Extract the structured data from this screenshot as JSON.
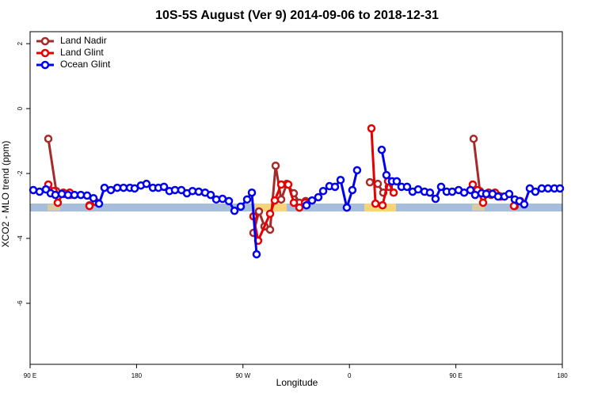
{
  "chart_data": {
    "type": "line",
    "title": "10S-5S August (Ver 9)   2014-09-06 to 2018-12-31",
    "x_label": "Longitude",
    "y_label": "XCO2 - MLO trend (ppm)",
    "xlim": [
      90,
      540
    ],
    "ylim": [
      -7.88,
      2.37
    ],
    "xticks": [
      {
        "value": 90,
        "label": "90 E"
      },
      {
        "value": 180,
        "label": "180"
      },
      {
        "value": 270,
        "label": "90 W"
      },
      {
        "value": 360,
        "label": "0"
      },
      {
        "value": 450,
        "label": "90 E"
      },
      {
        "value": 540,
        "label": "180"
      }
    ],
    "yticks": [
      -6,
      -4,
      -2,
      0,
      2
    ],
    "legend": "top-left",
    "series": [
      {
        "name": "Land Nadir",
        "color": "#a52a2a",
        "x": [
          105.4,
          112.1,
          118.1,
          124.1,
          null,
          140.2,
          null,
          278.8,
          283.5,
          288.2,
          292.9,
          297.6,
          302.3,
          307,
          313,
          317.7,
          323,
          null,
          377.3,
          384,
          388.6,
          393.3,
          null,
          465,
          470.3,
          475,
          479.7,
          485.7,
          null,
          499.8
        ],
        "values": [
          -0.93,
          -2.54,
          -2.63,
          -2.66,
          null,
          -2.98,
          null,
          -3.83,
          -3.17,
          -3.63,
          -3.73,
          -1.76,
          -2.8,
          -2.32,
          -2.61,
          -2.9,
          -2.85,
          null,
          -2.27,
          -2.32,
          -2.59,
          -2.41,
          null,
          -0.93,
          -2.54,
          -2.63,
          -2.66,
          -2.68,
          null,
          -3.0
        ]
      },
      {
        "name": "Land Glint",
        "color": "#e60000",
        "x": [
          105.4,
          109.9,
          113.4,
          118.1,
          123.5,
          null,
          140.2,
          145.6,
          null,
          278.8,
          282.8,
          292.9,
          296.9,
          302.3,
          308.3,
          313,
          317.7,
          322.4,
          null,
          378.6,
          382,
          388,
          392.7,
          397.4,
          null,
          464.3,
          468.3,
          473,
          477.7,
          483.1,
          487.8,
          null,
          499.1,
          504.5
        ],
        "values": [
          -2.34,
          -2.54,
          -2.9,
          -2.59,
          -2.59,
          null,
          -3.0,
          -2.88,
          null,
          -3.32,
          -4.07,
          -3.24,
          -2.83,
          -2.34,
          -2.34,
          -2.9,
          -3.05,
          -2.9,
          null,
          -0.61,
          -2.93,
          -2.98,
          -2.24,
          -2.59,
          null,
          -2.34,
          -2.51,
          -2.9,
          -2.59,
          -2.59,
          -2.71,
          null,
          -3.0,
          -2.85
        ]
      },
      {
        "name": "Ocean Glint",
        "color": "#0000ee",
        "x": [
          92.7,
          98,
          103.4,
          107.4,
          111.4,
          116.8,
          122.1,
          127.5,
          132.9,
          138.2,
          143.6,
          148.3,
          152.9,
          158.3,
          163.7,
          169,
          174.4,
          178.4,
          183.7,
          188.4,
          193.8,
          198.5,
          203.2,
          207.8,
          212.5,
          217.9,
          222.6,
          227.3,
          232.6,
          238,
          242.7,
          247.4,
          252.7,
          258.1,
          262.8,
          268.1,
          273.5,
          277.5,
          281.5,
          null,
          323.7,
          328.4,
          333.7,
          337.8,
          343.1,
          347.8,
          352.5,
          357.8,
          362.5,
          366.5,
          null,
          387.3,
          391.3,
          396,
          400,
          404,
          408.7,
          413.4,
          418.1,
          423.5,
          428.1,
          432.8,
          437.5,
          442.2,
          446.9,
          452.3,
          457,
          462.3,
          466.3,
          471.7,
          475.7,
          481,
          485.7,
          491.1,
          495.1,
          499.8,
          503.8,
          507.8,
          512.5,
          517.2,
          522.6,
          527.9,
          533.3,
          538
        ],
        "values": [
          -2.51,
          -2.56,
          -2.49,
          -2.61,
          -2.66,
          -2.63,
          -2.66,
          -2.66,
          -2.66,
          -2.68,
          -2.76,
          -2.93,
          -2.44,
          -2.51,
          -2.44,
          -2.44,
          -2.44,
          -2.46,
          -2.37,
          -2.32,
          -2.44,
          -2.44,
          -2.41,
          -2.54,
          -2.51,
          -2.51,
          -2.61,
          -2.54,
          -2.56,
          -2.59,
          -2.66,
          -2.8,
          -2.78,
          -2.85,
          -3.15,
          -3.02,
          -2.8,
          -2.59,
          -4.49,
          null,
          -2.98,
          -2.83,
          -2.73,
          -2.54,
          -2.39,
          -2.41,
          -2.2,
          -3.05,
          -2.51,
          -1.9,
          null,
          -1.27,
          -2.05,
          -2.24,
          -2.24,
          -2.41,
          -2.41,
          -2.56,
          -2.49,
          -2.56,
          -2.59,
          -2.78,
          -2.41,
          -2.56,
          -2.56,
          -2.51,
          -2.59,
          -2.51,
          -2.66,
          -2.61,
          -2.63,
          -2.63,
          -2.71,
          -2.71,
          -2.63,
          -2.8,
          -2.85,
          -2.95,
          -2.46,
          -2.56,
          -2.46,
          -2.46,
          -2.46,
          -2.46
        ]
      }
    ]
  }
}
